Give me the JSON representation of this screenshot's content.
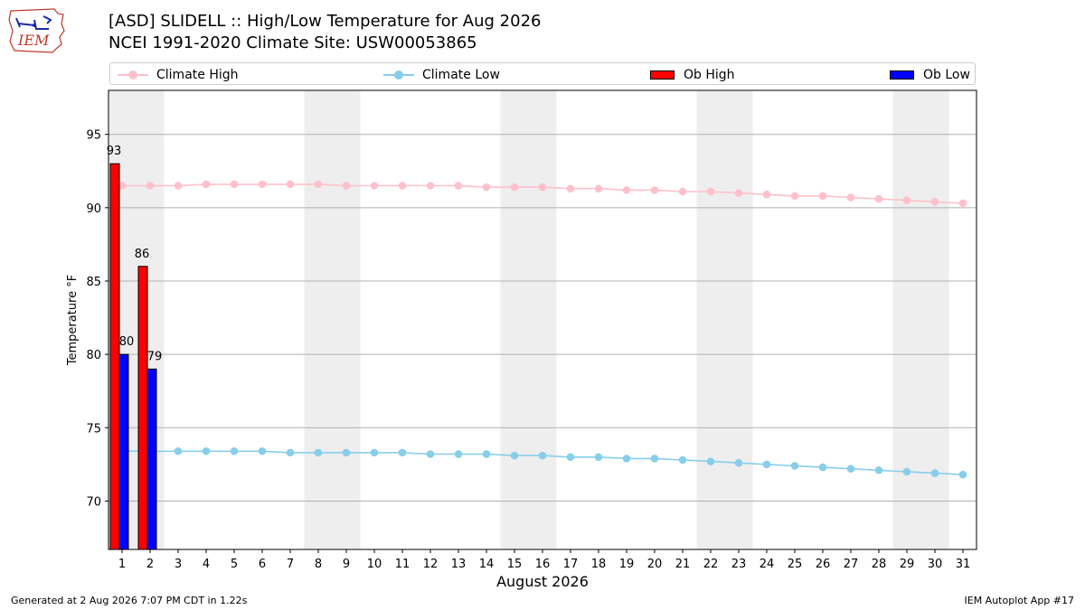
{
  "header": {
    "title": "[ASD] SLIDELL :: High/Low Temperature for Aug 2026",
    "subtitle": "NCEI 1991-2020 Climate Site: USW00053865",
    "logo_text": "IEM"
  },
  "legend": {
    "climate_high": "Climate High",
    "climate_low": "Climate Low",
    "ob_high": "Ob High",
    "ob_low": "Ob Low"
  },
  "colors": {
    "climate_high": "#ffc0cb",
    "climate_low": "#87ceeb",
    "ob_high": "#ff0000",
    "ob_low": "#0000ff",
    "weekend_band": "#eeeeee",
    "grid": "#b0b0b0"
  },
  "chart_data": {
    "type": "bar",
    "xlabel": "August 2026",
    "ylabel": "Temperature °F",
    "ylim": [
      66.7,
      98
    ],
    "yticks": [
      70,
      75,
      80,
      85,
      90,
      95
    ],
    "grid": true,
    "legend_position": "top",
    "categories": [
      1,
      2,
      3,
      4,
      5,
      6,
      7,
      8,
      9,
      10,
      11,
      12,
      13,
      14,
      15,
      16,
      17,
      18,
      19,
      20,
      21,
      22,
      23,
      24,
      25,
      26,
      27,
      28,
      29,
      30,
      31
    ],
    "weekend_bands": [
      [
        1,
        2
      ],
      [
        8,
        9
      ],
      [
        15,
        16
      ],
      [
        22,
        23
      ],
      [
        29,
        30
      ]
    ],
    "series": [
      {
        "name": "Ob High",
        "kind": "bar",
        "x": [
          1,
          2
        ],
        "values": [
          93,
          86
        ]
      },
      {
        "name": "Ob Low",
        "kind": "bar",
        "x": [
          1,
          2
        ],
        "values": [
          80,
          79
        ]
      },
      {
        "name": "Climate High",
        "kind": "line",
        "values": [
          91.5,
          91.5,
          91.5,
          91.6,
          91.6,
          91.6,
          91.6,
          91.6,
          91.5,
          91.5,
          91.5,
          91.5,
          91.5,
          91.4,
          91.4,
          91.4,
          91.3,
          91.3,
          91.2,
          91.2,
          91.1,
          91.1,
          91.0,
          90.9,
          90.8,
          90.8,
          90.7,
          90.6,
          90.5,
          90.4,
          90.3
        ]
      },
      {
        "name": "Climate Low",
        "kind": "line",
        "values": [
          73.4,
          73.4,
          73.4,
          73.4,
          73.4,
          73.4,
          73.3,
          73.3,
          73.3,
          73.3,
          73.3,
          73.2,
          73.2,
          73.2,
          73.1,
          73.1,
          73.0,
          73.0,
          72.9,
          72.9,
          72.8,
          72.7,
          72.6,
          72.5,
          72.4,
          72.3,
          72.2,
          72.1,
          72.0,
          71.9,
          71.8
        ]
      }
    ]
  },
  "footer": {
    "generated": "Generated at 2 Aug 2026 7:07 PM CDT in 1.22s",
    "app": "IEM Autoplot App #17"
  }
}
